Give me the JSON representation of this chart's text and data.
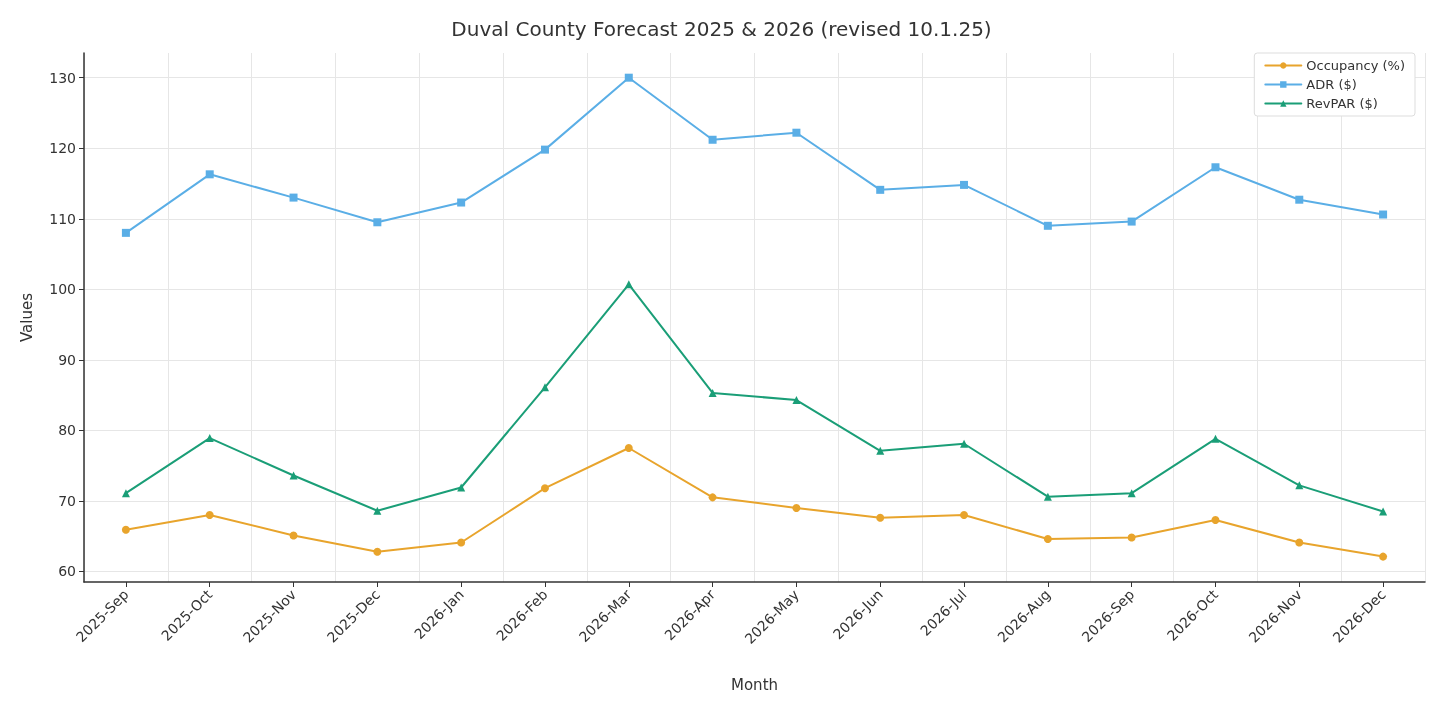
{
  "chart_data": {
    "type": "line",
    "title": "Duval County Forecast 2025 & 2026 (revised 10.1.25)",
    "xlabel": "Month",
    "ylabel": "Values",
    "categories": [
      "2025-Sep",
      "2025-Oct",
      "2025-Nov",
      "2025-Dec",
      "2026-Jan",
      "2026-Feb",
      "2026-Mar",
      "2026-Apr",
      "2026-May",
      "2026-Jun",
      "2026-Jul",
      "2026-Aug",
      "2026-Sep",
      "2026-Oct",
      "2026-Nov",
      "2026-Dec"
    ],
    "series": [
      {
        "name": "Occupancy (%)",
        "color": "#e8a42c",
        "marker": "circle",
        "values": [
          65.9,
          68,
          65.1,
          62.8,
          64.1,
          71.8,
          77.5,
          70.5,
          69,
          67.6,
          68,
          64.6,
          64.8,
          67.3,
          64.1,
          62.1
        ]
      },
      {
        "name": "ADR ($)",
        "color": "#5aaee6",
        "marker": "square",
        "values": [
          108,
          116.3,
          113,
          109.5,
          112.3,
          119.8,
          130,
          121.2,
          122.2,
          114.1,
          114.8,
          109,
          109.6,
          117.3,
          112.7,
          110.6
        ]
      },
      {
        "name": "RevPAR ($)",
        "color": "#1a9e77",
        "marker": "triangle",
        "values": [
          71.1,
          78.9,
          73.6,
          68.6,
          71.9,
          86.1,
          100.7,
          85.3,
          84.3,
          77.1,
          78.1,
          70.6,
          71.1,
          78.8,
          72.2,
          68.5
        ]
      }
    ],
    "ylim": [
      58.5,
      133.5
    ],
    "yticks": [
      60,
      70,
      80,
      90,
      100,
      110,
      120,
      130
    ],
    "grid": true,
    "legend": "top right",
    "line_style": "solid"
  }
}
